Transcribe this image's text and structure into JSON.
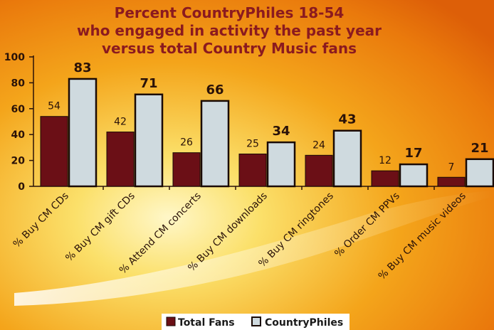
{
  "chart_data": {
    "type": "bar",
    "title": [
      "Percent CountryPhiles 18-54",
      "who engaged in activity the past year",
      "versus total Country Music fans"
    ],
    "xlabel": "",
    "ylabel": "",
    "ylim": [
      0,
      100
    ],
    "yticks": [
      0,
      20,
      40,
      60,
      80,
      100
    ],
    "grid": false,
    "legend_position": "bottom-center",
    "categories": [
      "% Buy CM CDs",
      "% Buy CM gift CDs",
      "% Attend CM concerts",
      "% Buy CM downloads",
      "% Buy CM ringtones",
      "% Order CM PPVs",
      "% Buy CM music videos"
    ],
    "series": [
      {
        "name": "Total Fans",
        "color": "#6b0f16",
        "values": [
          54,
          42,
          26,
          25,
          24,
          12,
          7
        ]
      },
      {
        "name": "CountryPhiles",
        "color": "#cfdadf",
        "values": [
          83,
          71,
          66,
          34,
          43,
          17,
          21
        ]
      }
    ],
    "colors": {
      "title": "#8b1a1f",
      "bar_outline": "#1a0a05",
      "axis": "#2a1208",
      "label_text": "#2a1208"
    }
  }
}
